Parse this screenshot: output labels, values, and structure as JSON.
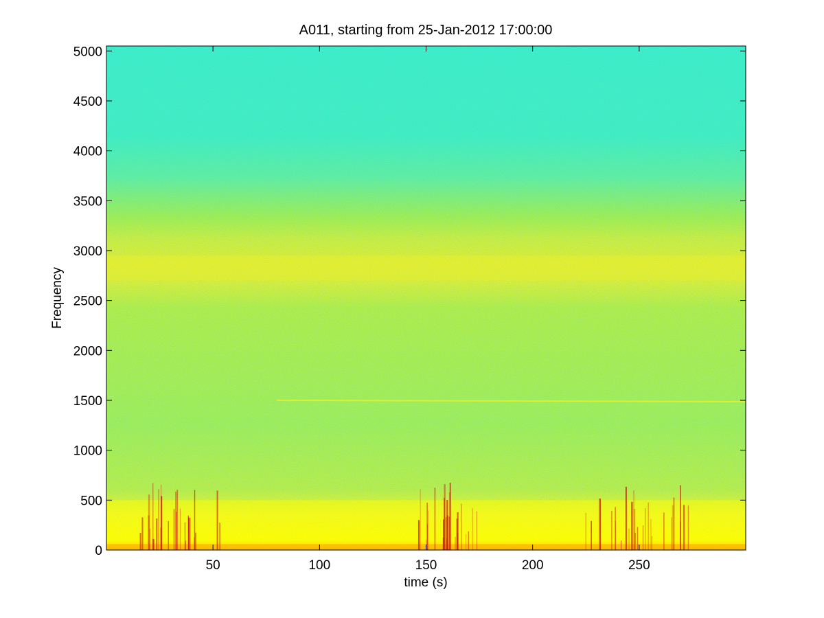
{
  "chart_data": {
    "type": "heatmap",
    "title": "A011, starting from 25-Jan-2012 17:00:00",
    "xlabel": "time (s)",
    "ylabel": "Frequency",
    "xlim": [
      0,
      300
    ],
    "ylim": [
      0,
      5050
    ],
    "x_ticks": [
      50,
      100,
      150,
      200,
      250
    ],
    "y_ticks": [
      0,
      500,
      1000,
      1500,
      2000,
      2500,
      3000,
      3500,
      4000,
      4500,
      5000
    ],
    "colormap": "jet",
    "colors": {
      "background_high_freq": "#3cf0c8",
      "mid_band": "#a0f050",
      "band_peak": "#f0f028",
      "low_freq": "#ffff00",
      "transient": "#c81414"
    },
    "features": {
      "broadband_band_hz": [
        2700,
        2950
      ],
      "tonal_line_hz": 1500,
      "low_freq_energy_hz": [
        0,
        500
      ],
      "transient_clusters_s": [
        [
          15,
          55
        ],
        [
          145,
          175
        ],
        [
          225,
          275
        ]
      ]
    }
  }
}
